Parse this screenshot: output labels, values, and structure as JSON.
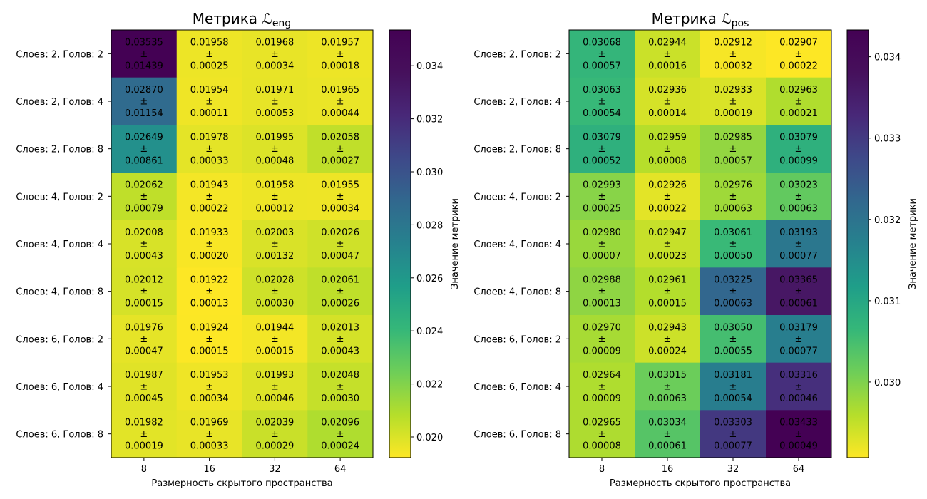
{
  "chart_data": [
    {
      "type": "heatmap",
      "title": "Метрика ",
      "title_symbol": "ℒ",
      "title_sub": "eng",
      "xlabel": "Размерность скрытого пространства",
      "categories_x": [
        "8",
        "16",
        "32",
        "64"
      ],
      "categories_y": [
        "Слоев: 2, Голов: 2",
        "Слоев: 2, Голов: 4",
        "Слоев: 2, Голов: 8",
        "Слоев: 4, Голов: 2",
        "Слоев: 4, Голов: 4",
        "Слоев: 4, Голов: 8",
        "Слоев: 6, Голов: 2",
        "Слоев: 6, Голов: 4",
        "Слоев: 6, Голов: 8"
      ],
      "mean_labels": [
        [
          "0.03535",
          "0.01958",
          "0.01968",
          "0.01957"
        ],
        [
          "0.02870",
          "0.01954",
          "0.01971",
          "0.01965"
        ],
        [
          "0.02649",
          "0.01978",
          "0.01995",
          "0.02058"
        ],
        [
          "0.02062",
          "0.01943",
          "0.01958",
          "0.01955"
        ],
        [
          "0.02008",
          "0.01933",
          "0.02003",
          "0.02026"
        ],
        [
          "0.02012",
          "0.01922",
          "0.02028",
          "0.02061"
        ],
        [
          "0.01976",
          "0.01924",
          "0.01944",
          "0.02013"
        ],
        [
          "0.01987",
          "0.01953",
          "0.01993",
          "0.02048"
        ],
        [
          "0.01982",
          "0.01969",
          "0.02039",
          "0.02096"
        ]
      ],
      "pm_symbol": "±",
      "std_labels": [
        [
          "0.01439",
          "0.00025",
          "0.00034",
          "0.00018"
        ],
        [
          "0.01154",
          "0.00011",
          "0.00053",
          "0.00044"
        ],
        [
          "0.00861",
          "0.00033",
          "0.00048",
          "0.00027"
        ],
        [
          "0.00079",
          "0.00022",
          "0.00012",
          "0.00034"
        ],
        [
          "0.00043",
          "0.00020",
          "0.00132",
          "0.00047"
        ],
        [
          "0.00015",
          "0.00013",
          "0.00030",
          "0.00026"
        ],
        [
          "0.00047",
          "0.00015",
          "0.00015",
          "0.00043"
        ],
        [
          "0.00045",
          "0.00034",
          "0.00046",
          "0.00030"
        ],
        [
          "0.00019",
          "0.00033",
          "0.00029",
          "0.00024"
        ]
      ],
      "colormap": "viridis_r",
      "vmin": 0.01922,
      "vmax": 0.03535,
      "colorbar": {
        "label": "Значение метрики",
        "ticks": [
          "0.020",
          "0.022",
          "0.024",
          "0.026",
          "0.028",
          "0.030",
          "0.032",
          "0.034"
        ]
      }
    },
    {
      "type": "heatmap",
      "title": "Метрика ",
      "title_symbol": "ℒ",
      "title_sub": "pos",
      "xlabel": "Размерность скрытого пространства",
      "categories_x": [
        "8",
        "16",
        "32",
        "64"
      ],
      "categories_y": [
        "Слоев: 2, Голов: 2",
        "Слоев: 2, Голов: 4",
        "Слоев: 2, Голов: 8",
        "Слоев: 4, Голов: 2",
        "Слоев: 4, Голов: 4",
        "Слоев: 4, Голов: 8",
        "Слоев: 6, Голов: 2",
        "Слоев: 6, Голов: 4",
        "Слоев: 6, Голов: 8"
      ],
      "mean_labels": [
        [
          "0.03068",
          "0.02944",
          "0.02912",
          "0.02907"
        ],
        [
          "0.03063",
          "0.02936",
          "0.02933",
          "0.02963"
        ],
        [
          "0.03079",
          "0.02959",
          "0.02985",
          "0.03079"
        ],
        [
          "0.02993",
          "0.02926",
          "0.02976",
          "0.03023"
        ],
        [
          "0.02980",
          "0.02947",
          "0.03061",
          "0.03193"
        ],
        [
          "0.02988",
          "0.02961",
          "0.03225",
          "0.03365"
        ],
        [
          "0.02970",
          "0.02943",
          "0.03050",
          "0.03179"
        ],
        [
          "0.02964",
          "0.03015",
          "0.03181",
          "0.03316"
        ],
        [
          "0.02965",
          "0.03034",
          "0.03303",
          "0.03433"
        ]
      ],
      "pm_symbol": "±",
      "std_labels": [
        [
          "0.00057",
          "0.00016",
          "0.00032",
          "0.00022"
        ],
        [
          "0.00054",
          "0.00014",
          "0.00019",
          "0.00021"
        ],
        [
          "0.00052",
          "0.00008",
          "0.00057",
          "0.00099"
        ],
        [
          "0.00025",
          "0.00022",
          "0.00063",
          "0.00063"
        ],
        [
          "0.00007",
          "0.00023",
          "0.00050",
          "0.00077"
        ],
        [
          "0.00013",
          "0.00015",
          "0.00063",
          "0.00061"
        ],
        [
          "0.00009",
          "0.00024",
          "0.00055",
          "0.00077"
        ],
        [
          "0.00009",
          "0.00063",
          "0.00054",
          "0.00046"
        ],
        [
          "0.00008",
          "0.00061",
          "0.00077",
          "0.00049"
        ]
      ],
      "colormap": "viridis_r",
      "vmin": 0.02907,
      "vmax": 0.03433,
      "colorbar": {
        "label": "Значение метрики",
        "ticks": [
          "0.030",
          "0.031",
          "0.032",
          "0.033",
          "0.034"
        ]
      }
    }
  ]
}
